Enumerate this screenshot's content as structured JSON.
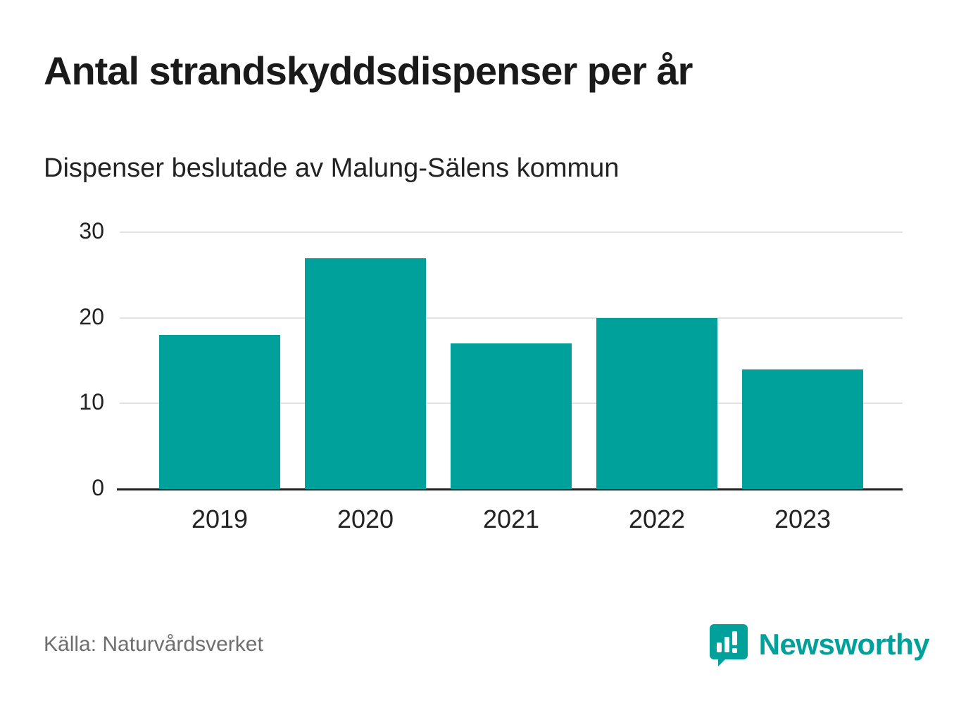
{
  "header": {
    "title": "Antal strandskyddsdispenser per år",
    "subtitle": "Dispenser beslutade av Malung-Sälens kommun"
  },
  "chart_data": {
    "type": "bar",
    "categories": [
      "2019",
      "2020",
      "2021",
      "2022",
      "2023"
    ],
    "values": [
      18,
      27,
      17,
      20,
      14
    ],
    "title": "Antal strandskyddsdispenser per år",
    "subtitle": "Dispenser beslutade av Malung-Sälens kommun",
    "xlabel": "",
    "ylabel": "",
    "ylim": [
      0,
      30
    ],
    "yticks": [
      0,
      10,
      20,
      30
    ],
    "grid": true,
    "legend": "none",
    "bar_color": "#00A09B",
    "axis_color": "#222222",
    "gridline_color": "#e2e2e2"
  },
  "footer": {
    "source": "Källa: Naturvårdsverket",
    "brand": "Newsworthy",
    "brand_color": "#00A09B"
  }
}
